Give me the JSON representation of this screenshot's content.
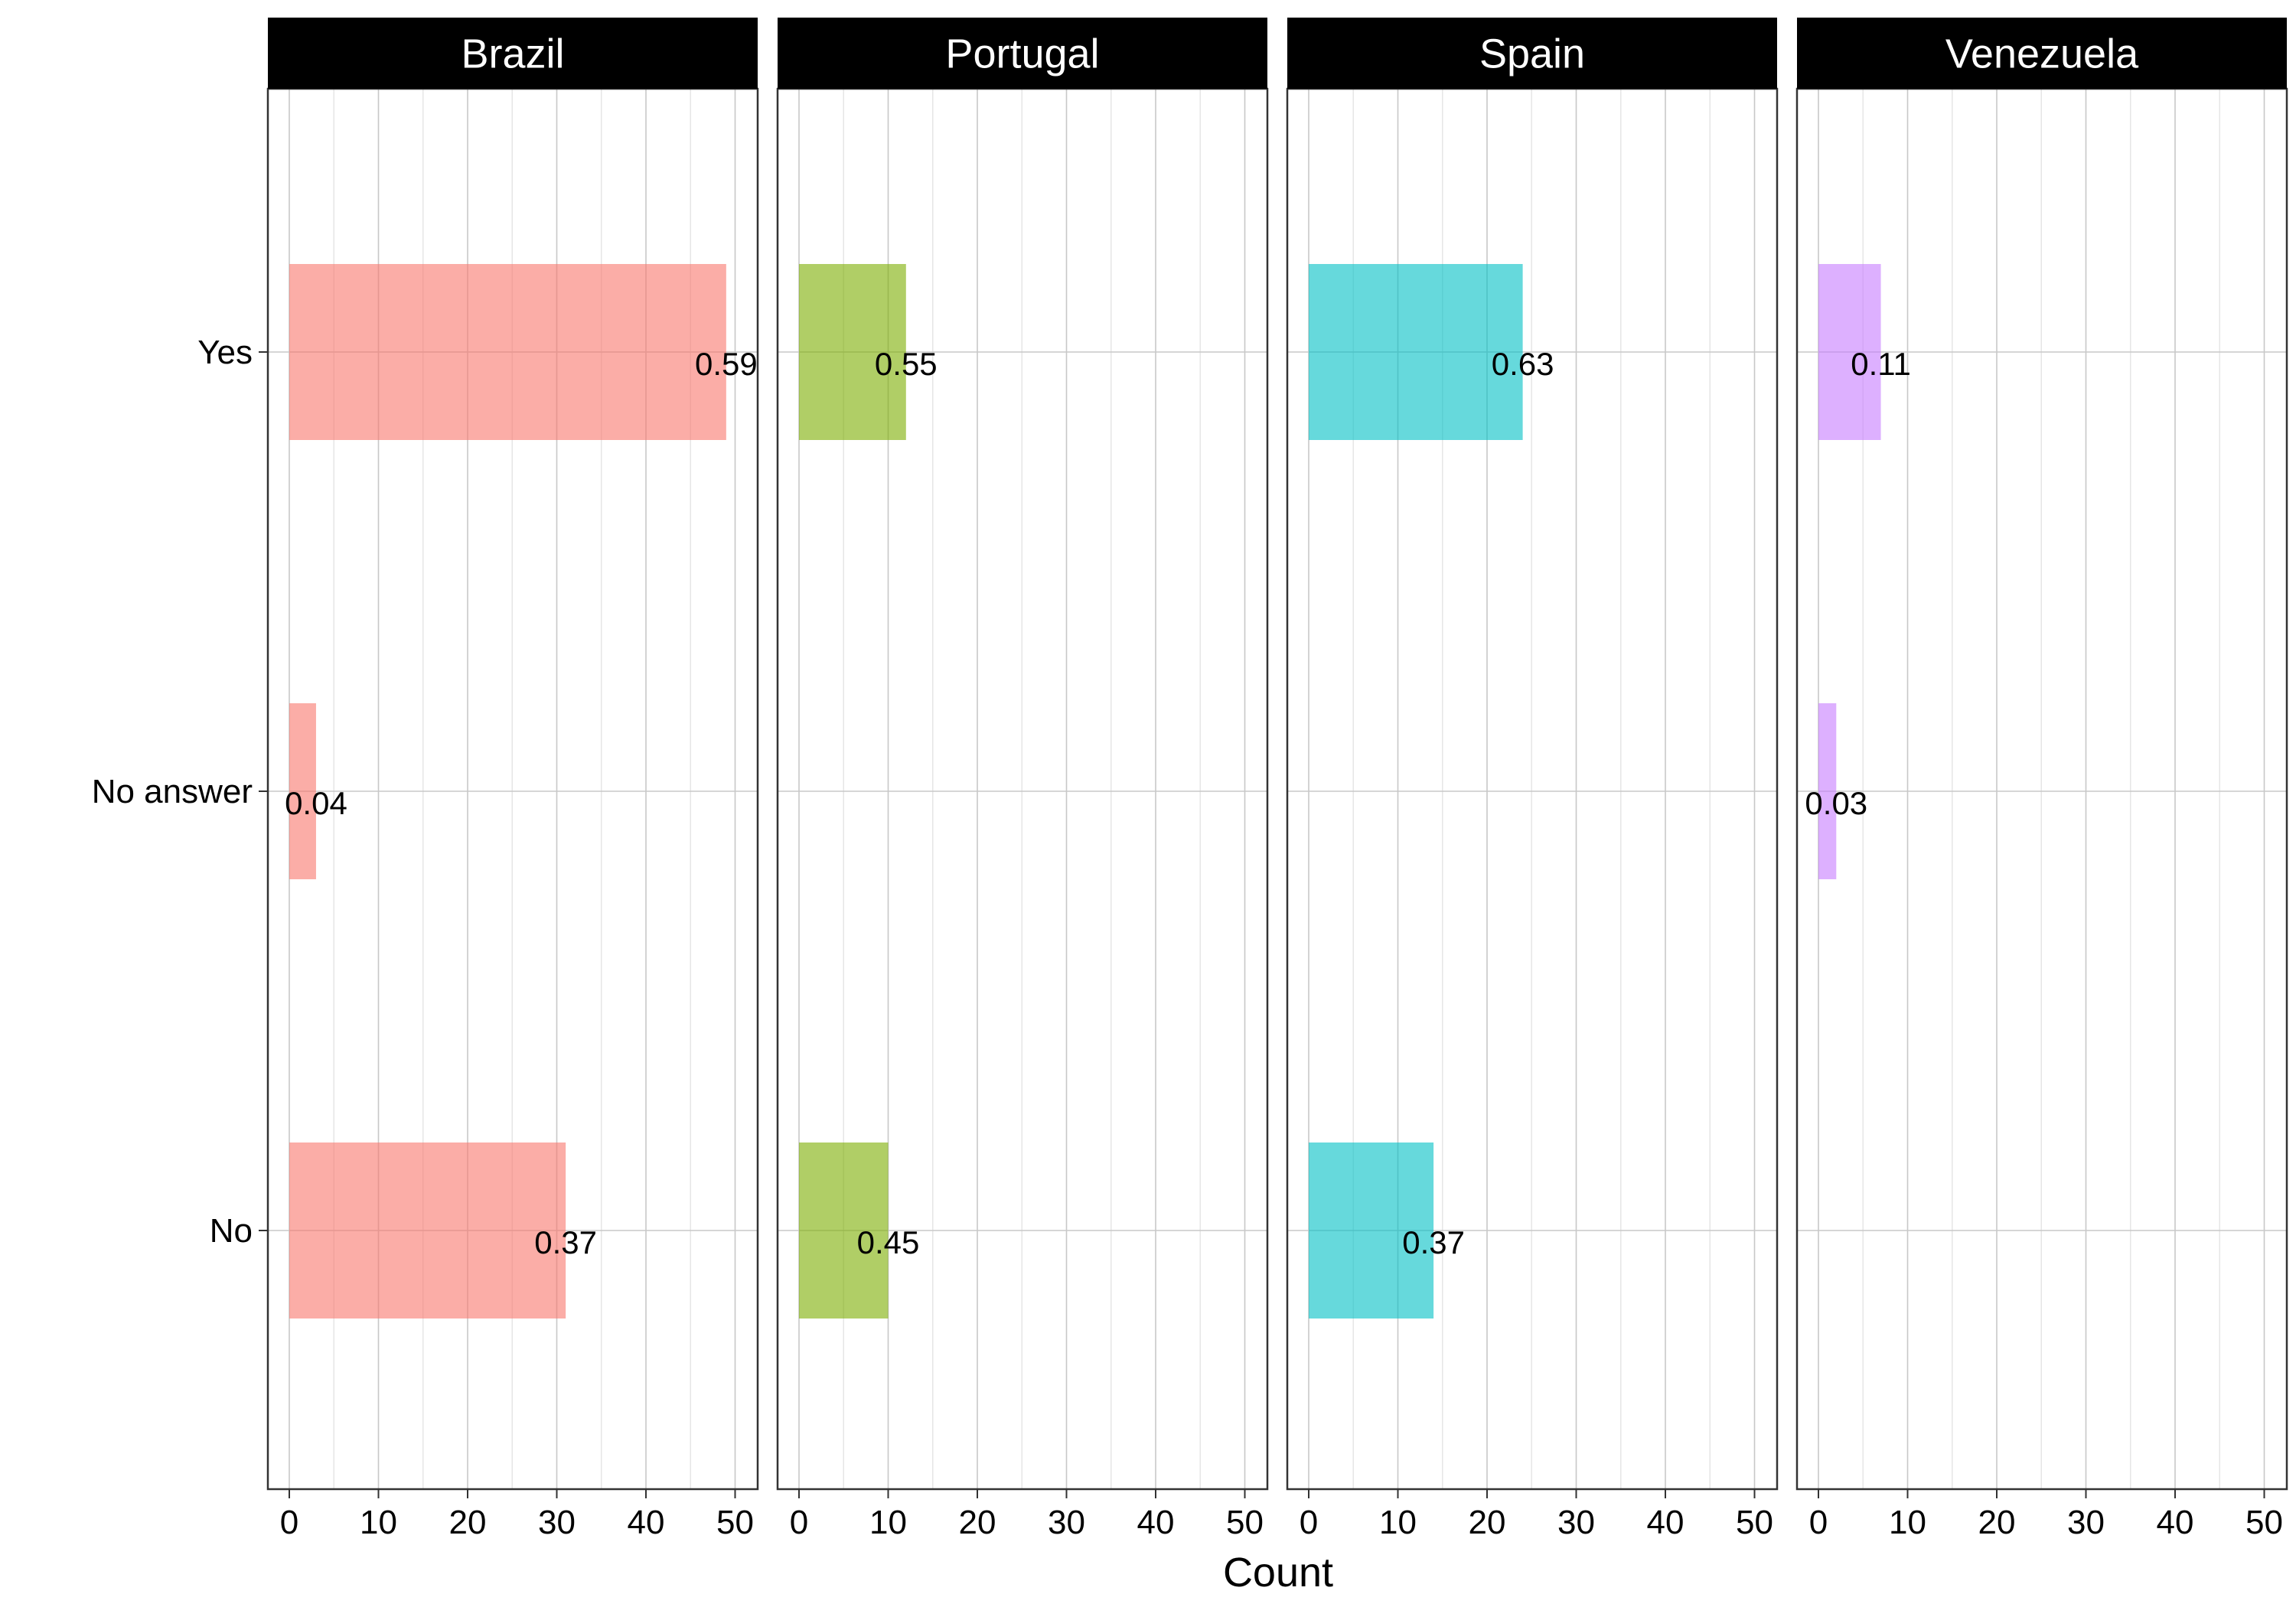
{
  "chart_data": {
    "type": "bar",
    "orientation": "horizontal",
    "facet_by": "country",
    "xlabel": "Count",
    "ylabel": "",
    "xlim": [
      0,
      52
    ],
    "x_ticks": [
      0,
      10,
      20,
      30,
      40,
      50
    ],
    "categories": [
      "Yes",
      "No answer",
      "No"
    ],
    "grid": true,
    "legend": "none",
    "panels": [
      {
        "name": "Brazil",
        "color": "#F8766D",
        "bars": [
          {
            "category": "Yes",
            "value": 49,
            "label": "0.59"
          },
          {
            "category": "No answer",
            "value": 3,
            "label": "0.04"
          },
          {
            "category": "No",
            "value": 31,
            "label": "0.37"
          }
        ]
      },
      {
        "name": "Portugal",
        "color": "#7CAE00",
        "bars": [
          {
            "category": "Yes",
            "value": 12,
            "label": "0.55"
          },
          {
            "category": "No",
            "value": 10,
            "label": "0.45"
          }
        ]
      },
      {
        "name": "Spain",
        "color": "#00BFC4",
        "bars": [
          {
            "category": "Yes",
            "value": 24,
            "label": "0.63"
          },
          {
            "category": "No",
            "value": 14,
            "label": "0.37"
          }
        ]
      },
      {
        "name": "Venezuela",
        "color": "#C77CFF",
        "bars": [
          {
            "category": "Yes",
            "value": 7,
            "label": "0.11"
          },
          {
            "category": "No answer",
            "value": 2,
            "label": "0.03"
          }
        ]
      }
    ]
  }
}
